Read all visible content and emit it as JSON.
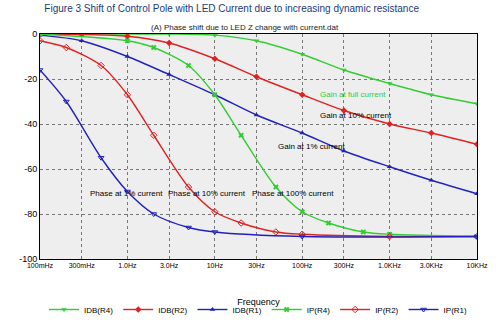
{
  "chart_data": {
    "type": "line",
    "title": "Figure 3 Shift of Control Pole with LED Current due to increasing dynamic resistance",
    "subtitle": "(A) Phase shift due to LED Z change with current.dat",
    "x_label": "Frequency",
    "log": "x",
    "grid": true,
    "legend": "bottom",
    "xlim": [
      0.1,
      10000
    ],
    "xticks": [
      {
        "value": 0.1,
        "label": "100mHz"
      },
      {
        "value": 0.3,
        "label": "300mHz"
      },
      {
        "value": 1,
        "label": "1.0Hz"
      },
      {
        "value": 3,
        "label": "3.0Hz"
      },
      {
        "value": 10,
        "label": "10Hz"
      },
      {
        "value": 30,
        "label": "30Hz"
      },
      {
        "value": 100,
        "label": "100Hz"
      },
      {
        "value": 300,
        "label": "300Hz"
      },
      {
        "value": 1000,
        "label": "1.0KHz"
      },
      {
        "value": 3000,
        "label": "3.0KHz"
      },
      {
        "value": 10000,
        "label": "10KHz"
      }
    ],
    "ylim": [
      -100,
      0
    ],
    "yticks": [
      -100,
      -80,
      -60,
      -40,
      -20,
      0
    ],
    "series": [
      {
        "name": "IDB(R4)",
        "color": "#33cc33",
        "marker": "triangle-down",
        "x": [
          0.1,
          0.3,
          1,
          3,
          10,
          30,
          100,
          300,
          1000,
          3000,
          10000
        ],
        "values": [
          0,
          0,
          0,
          0,
          -0.5,
          -3,
          -9,
          -16,
          -22,
          -27,
          -31
        ]
      },
      {
        "name": "IDB(R2)",
        "color": "#dd2222",
        "marker": "diamond",
        "x": [
          0.1,
          0.3,
          1,
          3,
          10,
          30,
          100,
          300,
          1000,
          3000,
          10000
        ],
        "values": [
          0,
          -0.2,
          -1,
          -4,
          -11,
          -19,
          -27,
          -34,
          -40,
          -44,
          -49
        ]
      },
      {
        "name": "IDB(R1)",
        "color": "#2222bb",
        "marker": "triangle-up",
        "x": [
          0.1,
          0.3,
          1,
          3,
          10,
          30,
          100,
          300,
          1000,
          3000,
          10000
        ],
        "values": [
          -0.5,
          -3,
          -10,
          -18,
          -27,
          -36,
          -44,
          -52,
          -59,
          -65,
          -71
        ]
      },
      {
        "name": "IP(R4)",
        "color": "#33cc33",
        "marker": "x",
        "x": [
          0.1,
          1,
          2,
          5,
          10,
          20,
          50,
          100,
          200,
          500,
          1000,
          10000
        ],
        "values": [
          0,
          -3,
          -6,
          -14,
          -27,
          -45,
          -68,
          -79,
          -84,
          -88,
          -89,
          -90
        ]
      },
      {
        "name": "IP(R2)",
        "color": "#dd2222",
        "marker": "diamond-open",
        "x": [
          0.1,
          0.2,
          0.5,
          1,
          2,
          5,
          10,
          20,
          50,
          100,
          1000,
          10000
        ],
        "values": [
          -3,
          -6,
          -14,
          -27,
          -45,
          -68,
          -79,
          -84,
          -88,
          -89,
          -90,
          -90
        ]
      },
      {
        "name": "IP(R1)",
        "color": "#2222bb",
        "marker": "triangle-down-open",
        "x": [
          0.1,
          0.2,
          0.5,
          1,
          2,
          5,
          10,
          100,
          10000
        ],
        "values": [
          -16,
          -30,
          -55,
          -70,
          -80,
          -86,
          -88,
          -90,
          -90
        ]
      }
    ],
    "annotations": [
      {
        "text": "Gain at full current",
        "x": 150,
        "y": -27,
        "color": "#33cc33"
      },
      {
        "text": "Gain at 10% current",
        "x": 150,
        "y": -36,
        "color": "#000000"
      },
      {
        "text": "Gain at 1% current",
        "x": 50,
        "y": -50,
        "color": "#000000"
      },
      {
        "text": "Phase at 1% current",
        "x": 0.35,
        "y": -71,
        "color": "#000000"
      },
      {
        "text": "Phase at 10% current",
        "x": 2.8,
        "y": -71,
        "color": "#000000"
      },
      {
        "text": "Phase at 100% current",
        "x": 25,
        "y": -71,
        "color": "#000000"
      }
    ]
  }
}
